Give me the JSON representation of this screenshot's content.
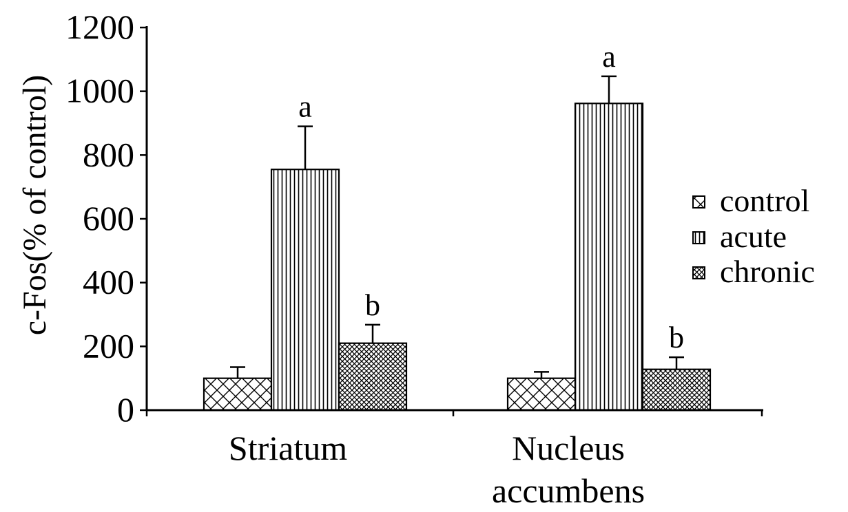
{
  "chart_data": {
    "type": "bar",
    "categories": [
      "Striatum",
      "Nucleus accumbens"
    ],
    "category_label_lines": [
      [
        "Striatum"
      ],
      [
        "Nucleus",
        "accumbens"
      ]
    ],
    "series": [
      {
        "name": "control",
        "values": [
          100,
          100
        ],
        "errors": [
          35,
          20
        ],
        "pattern": "crosshatch-sparse",
        "labels": [
          "",
          ""
        ]
      },
      {
        "name": "acute",
        "values": [
          755,
          962
        ],
        "errors": [
          135,
          85
        ],
        "pattern": "vertical-lines",
        "labels": [
          "a",
          "a"
        ]
      },
      {
        "name": "chronic",
        "values": [
          210,
          128
        ],
        "errors": [
          58,
          38
        ],
        "pattern": "crosshatch-dense",
        "labels": [
          "b",
          "b"
        ]
      }
    ],
    "title": "",
    "xlabel": "",
    "ylabel": "c-Fos(% of control)",
    "ylim": [
      0,
      1200
    ],
    "yticks": [
      0,
      200,
      400,
      600,
      800,
      1000,
      1200
    ],
    "grid": false,
    "legend_position": "right",
    "colors": {
      "bar_stroke": "#000000",
      "fill": "#ffffff"
    }
  }
}
